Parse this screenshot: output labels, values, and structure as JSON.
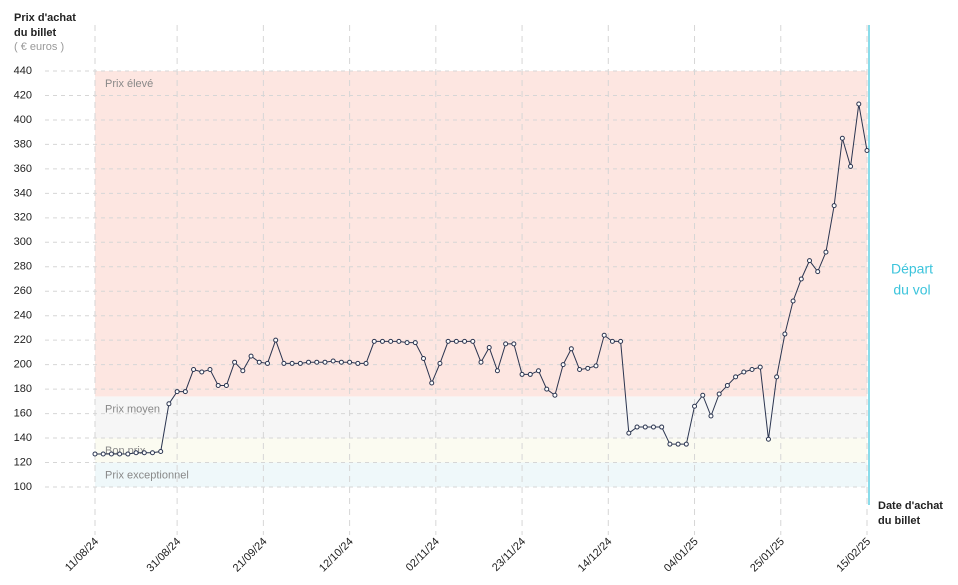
{
  "chart_data": {
    "type": "line",
    "y_title": [
      "Prix d'achat",
      "du billet"
    ],
    "y_unit": "( € euros )",
    "x_title": [
      "Date d'achat",
      "du billet"
    ],
    "departure_label": [
      "Départ",
      "du vol"
    ],
    "color": "#2b3550",
    "x": [
      "2024-08-11",
      "2024-08-13",
      "2024-08-15",
      "2024-08-17",
      "2024-08-19",
      "2024-08-21",
      "2024-08-23",
      "2024-08-25",
      "2024-08-27",
      "2024-08-29",
      "2024-08-31",
      "2024-09-02",
      "2024-09-04",
      "2024-09-06",
      "2024-09-08",
      "2024-09-10",
      "2024-09-12",
      "2024-09-14",
      "2024-09-16",
      "2024-09-18",
      "2024-09-20",
      "2024-09-22",
      "2024-09-24",
      "2024-09-26",
      "2024-09-28",
      "2024-09-30",
      "2024-10-02",
      "2024-10-04",
      "2024-10-06",
      "2024-10-08",
      "2024-10-10",
      "2024-10-12",
      "2024-10-14",
      "2024-10-16",
      "2024-10-18",
      "2024-10-20",
      "2024-10-22",
      "2024-10-24",
      "2024-10-26",
      "2024-10-28",
      "2024-10-30",
      "2024-11-01",
      "2024-11-03",
      "2024-11-05",
      "2024-11-07",
      "2024-11-09",
      "2024-11-11",
      "2024-11-13",
      "2024-11-15",
      "2024-11-17",
      "2024-11-19",
      "2024-11-21",
      "2024-11-23",
      "2024-11-25",
      "2024-11-27",
      "2024-11-29",
      "2024-12-01",
      "2024-12-03",
      "2024-12-05",
      "2024-12-07",
      "2024-12-09",
      "2024-12-11",
      "2024-12-13",
      "2024-12-15",
      "2024-12-17",
      "2024-12-19",
      "2024-12-21",
      "2024-12-23",
      "2024-12-25",
      "2024-12-27",
      "2024-12-29",
      "2024-12-31",
      "2025-01-02",
      "2025-01-04",
      "2025-01-06",
      "2025-01-08",
      "2025-01-10",
      "2025-01-12",
      "2025-01-14",
      "2025-01-16",
      "2025-01-18",
      "2025-01-20",
      "2025-01-22",
      "2025-01-24",
      "2025-01-26",
      "2025-01-28",
      "2025-01-30",
      "2025-02-01",
      "2025-02-03",
      "2025-02-05",
      "2025-02-07",
      "2025-02-09",
      "2025-02-11",
      "2025-02-13",
      "2025-02-15"
    ],
    "values": [
      127,
      127,
      127,
      127,
      127,
      128,
      128,
      128,
      129,
      168,
      178,
      178,
      196,
      194,
      196,
      183,
      183,
      202,
      195,
      207,
      202,
      201,
      220,
      201,
      201,
      201,
      202,
      202,
      202,
      203,
      202,
      202,
      201,
      201,
      219,
      219,
      219,
      219,
      218,
      218,
      205,
      185,
      201,
      219,
      219,
      219,
      219,
      202,
      214,
      195,
      217,
      217,
      192,
      192,
      195,
      180,
      175,
      200,
      213,
      196,
      197,
      199,
      224,
      219,
      219,
      144,
      149,
      149,
      149,
      149,
      135,
      135,
      135,
      166,
      175,
      158,
      176,
      183,
      190,
      194,
      196,
      198,
      139,
      190,
      225,
      252,
      270,
      285,
      276,
      292,
      330,
      385,
      362,
      413,
      375
    ],
    "xlim": [
      "2024-08-11",
      "2025-02-15"
    ],
    "xticks": [
      {
        "value": "2024-08-11",
        "label": "11/08/24"
      },
      {
        "value": "2024-08-31",
        "label": "31/08/24"
      },
      {
        "value": "2024-09-21",
        "label": "21/09/24"
      },
      {
        "value": "2024-10-12",
        "label": "12/10/24"
      },
      {
        "value": "2024-11-02",
        "label": "02/11/24"
      },
      {
        "value": "2024-11-23",
        "label": "23/11/24"
      },
      {
        "value": "2024-12-14",
        "label": "14/12/24"
      },
      {
        "value": "2025-01-04",
        "label": "04/01/25"
      },
      {
        "value": "2025-01-25",
        "label": "25/01/25"
      },
      {
        "value": "2025-02-15",
        "label": "15/02/25"
      }
    ],
    "ylim": [
      100,
      440
    ],
    "yticks": [
      100,
      120,
      140,
      160,
      180,
      200,
      220,
      240,
      260,
      280,
      300,
      320,
      340,
      360,
      380,
      400,
      420,
      440
    ],
    "grid": true,
    "zones": [
      {
        "label": "Prix élevé",
        "from": 174,
        "to": 440,
        "color": "#fde6e1"
      },
      {
        "label": "Prix moyen",
        "from": 140,
        "to": 174,
        "color": "#f6f6f6"
      },
      {
        "label": "Bon prix",
        "from": 120,
        "to": 140,
        "color": "#fbfbf1"
      },
      {
        "label": "Prix exceptionnel",
        "from": 100,
        "to": 120,
        "color": "#eff8fa"
      }
    ],
    "departure_color": "#3cc4dc"
  }
}
